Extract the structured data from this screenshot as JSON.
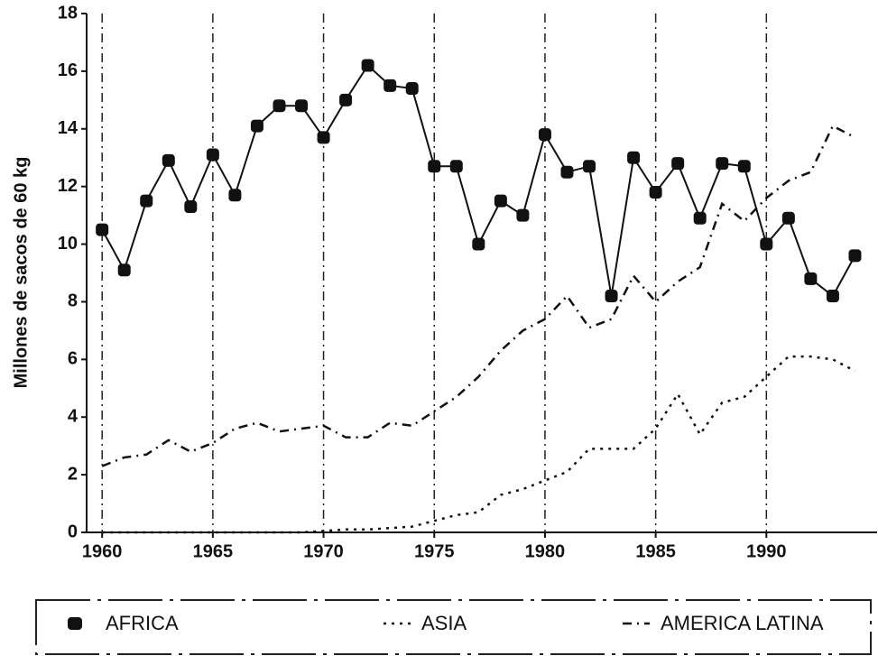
{
  "chart_data": {
    "type": "line",
    "y_label": "Millones de sacos de 60 kg",
    "x": [
      1960,
      1961,
      1962,
      1963,
      1964,
      1965,
      1966,
      1967,
      1968,
      1969,
      1970,
      1971,
      1972,
      1973,
      1974,
      1975,
      1976,
      1977,
      1978,
      1979,
      1980,
      1981,
      1982,
      1983,
      1984,
      1985,
      1986,
      1987,
      1988,
      1989,
      1990,
      1991,
      1992,
      1993,
      1994
    ],
    "series": [
      {
        "name": "AFRICA",
        "color": "#111111",
        "values": [
          10.5,
          9.1,
          11.5,
          12.9,
          11.3,
          13.1,
          11.7,
          14.1,
          14.8,
          14.8,
          13.7,
          15.0,
          16.2,
          15.5,
          15.4,
          12.7,
          12.7,
          10.0,
          11.5,
          11.0,
          13.8,
          12.5,
          12.7,
          8.2,
          13.0,
          11.8,
          12.8,
          10.9,
          12.8,
          12.7,
          10.0,
          10.9,
          8.8,
          8.2,
          9.6
        ]
      },
      {
        "name": "ASIA",
        "color": "#111111",
        "values": [
          0,
          0,
          0,
          0,
          0,
          0,
          0,
          0,
          0,
          0,
          0.05,
          0.1,
          0.1,
          0.15,
          0.2,
          0.4,
          0.6,
          0.7,
          1.3,
          1.5,
          1.8,
          2.1,
          2.9,
          2.9,
          2.9,
          3.6,
          4.8,
          3.4,
          4.5,
          4.7,
          5.4,
          6.1,
          6.1,
          6.0,
          5.6
        ]
      },
      {
        "name": "AMERICA LATINA",
        "color": "#111111",
        "values": [
          2.3,
          2.6,
          2.7,
          3.2,
          2.8,
          3.1,
          3.6,
          3.8,
          3.5,
          3.6,
          3.7,
          3.3,
          3.3,
          3.8,
          3.7,
          4.2,
          4.7,
          5.4,
          6.3,
          7.0,
          7.4,
          8.2,
          7.1,
          7.4,
          8.9,
          8.0,
          8.7,
          9.2,
          11.4,
          10.8,
          11.6,
          12.2,
          12.5,
          14.1,
          13.7
        ]
      }
    ],
    "xlim": [
      1959.3,
      1995
    ],
    "xticks": [
      1960,
      1965,
      1970,
      1975,
      1980,
      1985,
      1990
    ],
    "ylim": [
      0,
      18
    ],
    "yticks": [
      0,
      2,
      4,
      6,
      8,
      10,
      12,
      14,
      16,
      18
    ],
    "grid": true
  }
}
